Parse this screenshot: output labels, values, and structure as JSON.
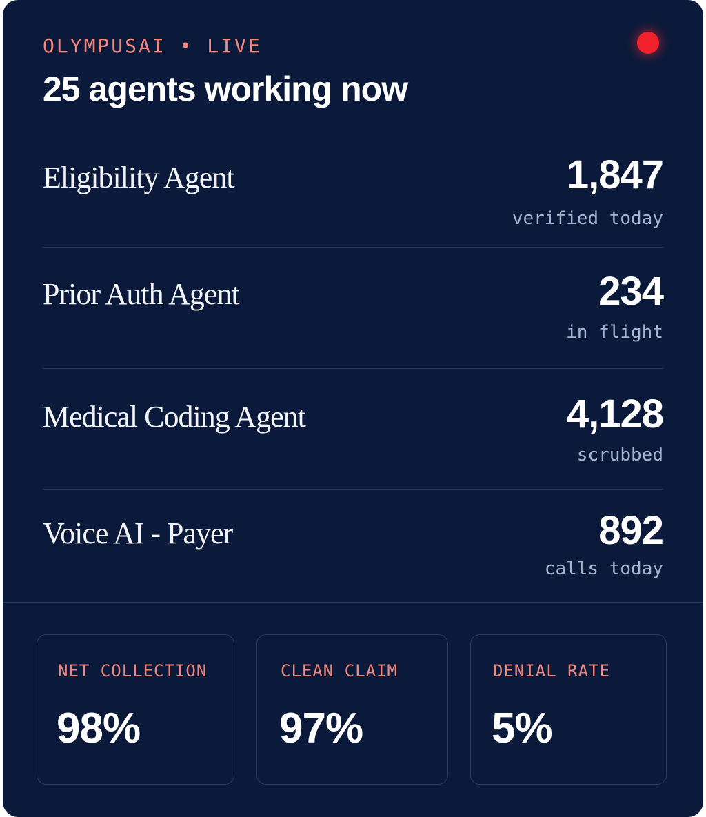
{
  "header": {
    "eyebrow": "OLYMPUSAI • LIVE",
    "headline": "25 agents working now"
  },
  "agents": [
    {
      "name": "Eligibility Agent",
      "value": "1,847",
      "caption": "verified today"
    },
    {
      "name": "Prior Auth Agent",
      "value": "234",
      "caption": "in flight"
    },
    {
      "name": "Medical Coding Agent",
      "value": "4,128",
      "caption": "scrubbed"
    },
    {
      "name": "Voice AI - Payer",
      "value": "892",
      "caption": "calls today"
    }
  ],
  "metrics": [
    {
      "label": "NET COLLECTION",
      "value": "98%"
    },
    {
      "label": "CLEAN CLAIM",
      "value": "97%"
    },
    {
      "label": "DENIAL RATE",
      "value": "5%"
    }
  ],
  "colors": {
    "background": "#0b1a3a",
    "accent": "#f2877d",
    "live": "#f0212a"
  }
}
